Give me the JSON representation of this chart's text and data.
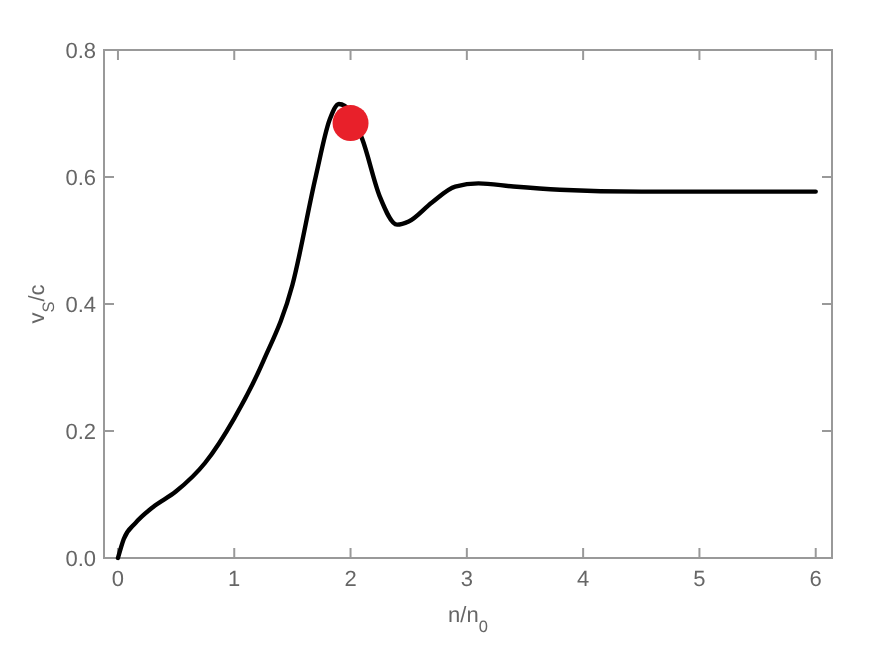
{
  "chart_data": {
    "type": "line",
    "xlabel": "n/n$_{0}$",
    "ylabel": "v$_{S}$/c",
    "xlim": [
      -0.12,
      6.14
    ],
    "ylim": [
      0,
      0.8
    ],
    "xticks": [
      0,
      1,
      2,
      3,
      4,
      5,
      6
    ],
    "yticks": [
      {
        "value": 0,
        "label": "0.0"
      },
      {
        "value": 0.2,
        "label": "0.2"
      },
      {
        "value": 0.4,
        "label": "0.4"
      },
      {
        "value": 0.6,
        "label": "0.6"
      },
      {
        "value": 0.8,
        "label": "0.8"
      }
    ],
    "grid": false,
    "series": [
      {
        "color": "#000000",
        "marker": "none",
        "x": [
          0,
          0.05,
          0.15,
          0.3,
          0.5,
          0.75,
          1,
          1.25,
          1.5,
          1.7,
          1.82,
          1.9,
          1.95,
          2.1,
          2.25,
          2.4,
          2.5,
          2.7,
          2.9,
          3.1,
          3.4,
          3.8,
          4.5,
          6
        ],
        "values": [
          0,
          0.03,
          0.055,
          0.08,
          0.105,
          0.15,
          0.22,
          0.31,
          0.43,
          0.6,
          0.69,
          0.715,
          0.712,
          0.66,
          0.57,
          0.525,
          0.53,
          0.56,
          0.585,
          0.59,
          0.585,
          0.58,
          0.577,
          0.577
        ]
      },
      {
        "type": "scatter",
        "color": "#e8202a",
        "marker": "circle",
        "x": [
          2
        ],
        "values": [
          0.685
        ]
      }
    ]
  }
}
